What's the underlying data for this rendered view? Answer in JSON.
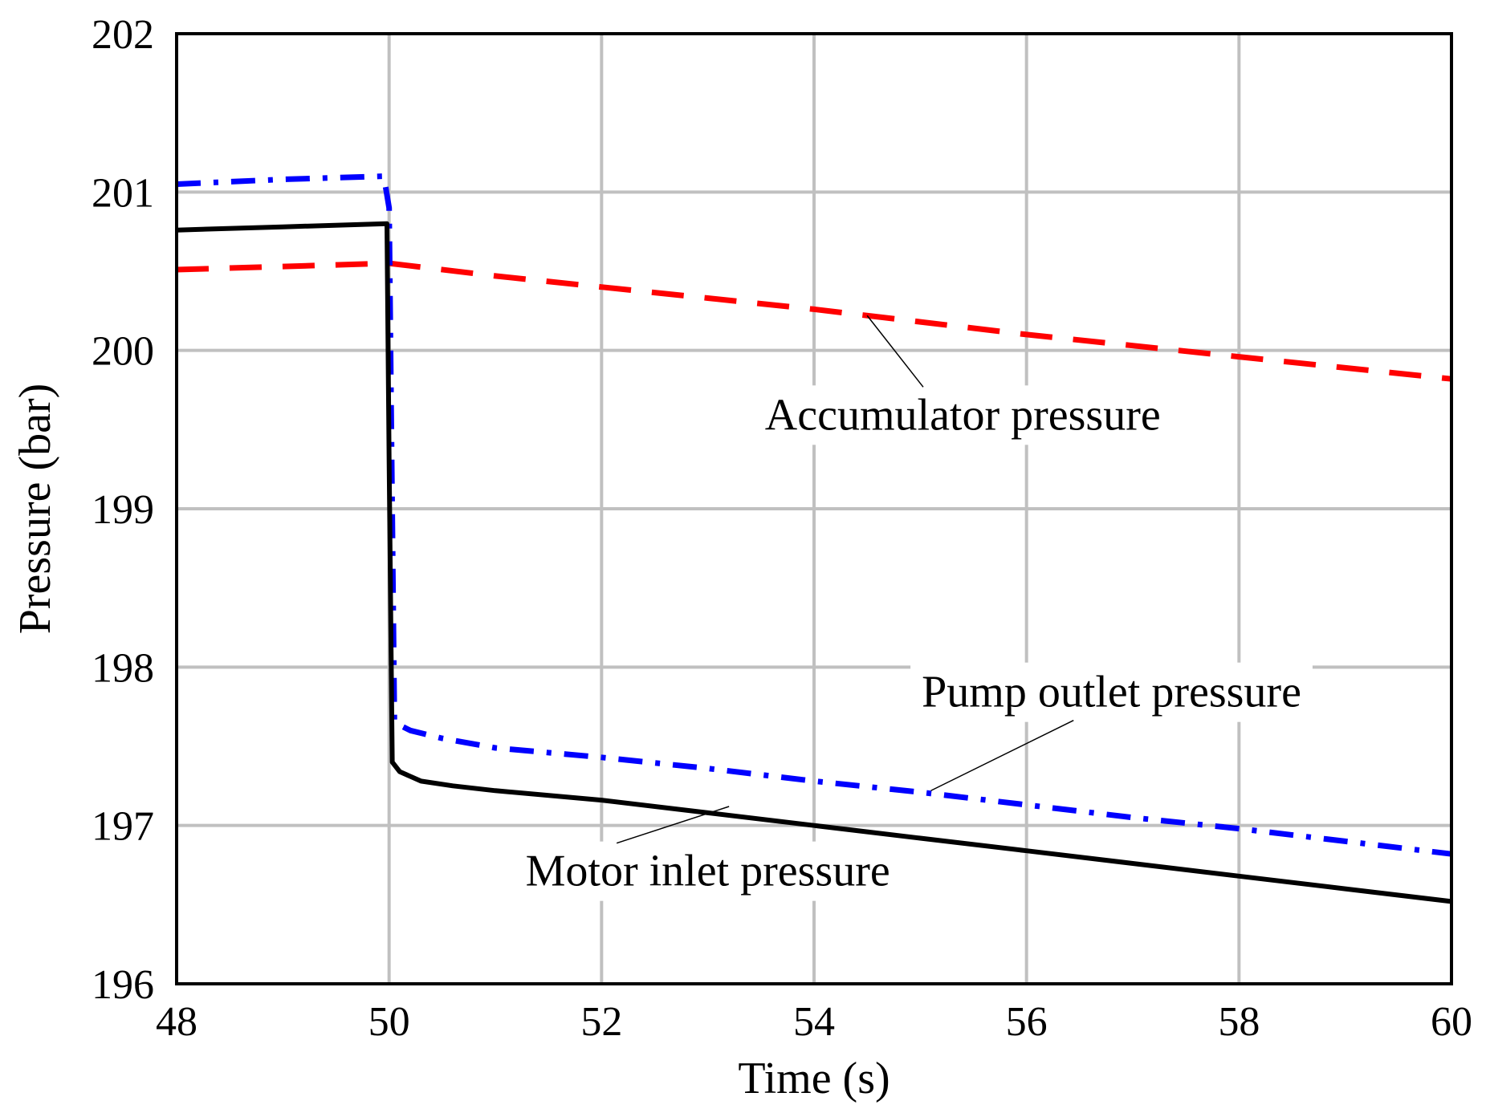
{
  "chart_data": {
    "type": "line",
    "title": "",
    "xlabel": "Time (s)",
    "ylabel": "Pressure (bar)",
    "xlim": [
      48,
      60
    ],
    "ylim": [
      196,
      202
    ],
    "xticks": [
      48,
      50,
      52,
      54,
      56,
      58,
      60
    ],
    "yticks": [
      196,
      197,
      198,
      199,
      200,
      201,
      202
    ],
    "xtick_labels": [
      "48",
      "50",
      "52",
      "54",
      "56",
      "58",
      "60"
    ],
    "ytick_labels": [
      "196",
      "197",
      "198",
      "199",
      "200",
      "201",
      "202"
    ],
    "grid": true,
    "legend": "none",
    "series": [
      {
        "name": "Accumulator pressure",
        "style": "dashed",
        "color": "#ff0000",
        "x": [
          48,
          49,
          50,
          51,
          52,
          53,
          54,
          55,
          56,
          57,
          58,
          59,
          60
        ],
        "y": [
          200.51,
          200.53,
          200.55,
          200.47,
          200.4,
          200.33,
          200.26,
          200.18,
          200.1,
          200.03,
          199.96,
          199.89,
          199.82
        ]
      },
      {
        "name": "Pump outlet pressure",
        "style": "dashdot",
        "color": "#0000ff",
        "x": [
          48,
          49,
          49.95,
          50.0,
          50.02,
          50.05,
          50.2,
          50.5,
          51,
          52,
          53,
          54,
          55,
          56,
          57,
          58,
          59,
          60
        ],
        "y": [
          201.05,
          201.08,
          201.1,
          200.9,
          199.6,
          197.65,
          197.6,
          197.55,
          197.49,
          197.43,
          197.36,
          197.28,
          197.21,
          197.13,
          197.05,
          196.98,
          196.9,
          196.82
        ]
      },
      {
        "name": "Motor inlet pressure",
        "style": "solid",
        "color": "#000000",
        "x": [
          48,
          49,
          49.98,
          50.0,
          50.03,
          50.1,
          50.3,
          50.6,
          51,
          52,
          53,
          54,
          55,
          56,
          57,
          58,
          59,
          60
        ],
        "y": [
          200.76,
          200.78,
          200.8,
          199.3,
          197.4,
          197.34,
          197.28,
          197.25,
          197.22,
          197.16,
          197.08,
          197.0,
          196.92,
          196.84,
          196.76,
          196.68,
          196.6,
          196.52
        ]
      }
    ],
    "annotations": [
      {
        "text": "Accumulator pressure",
        "series": 0,
        "point_x": 54.5,
        "point_y": 200.22,
        "label_x": 55.4,
        "label_y": 199.5
      },
      {
        "text": "Pump outlet pressure",
        "series": 1,
        "point_x": 55.1,
        "point_y": 197.22,
        "label_x": 56.8,
        "label_y": 197.75
      },
      {
        "text": "Motor inlet pressure",
        "series": 2,
        "point_x": 53.2,
        "point_y": 197.12,
        "label_x": 53.0,
        "label_y": 196.62
      }
    ]
  }
}
